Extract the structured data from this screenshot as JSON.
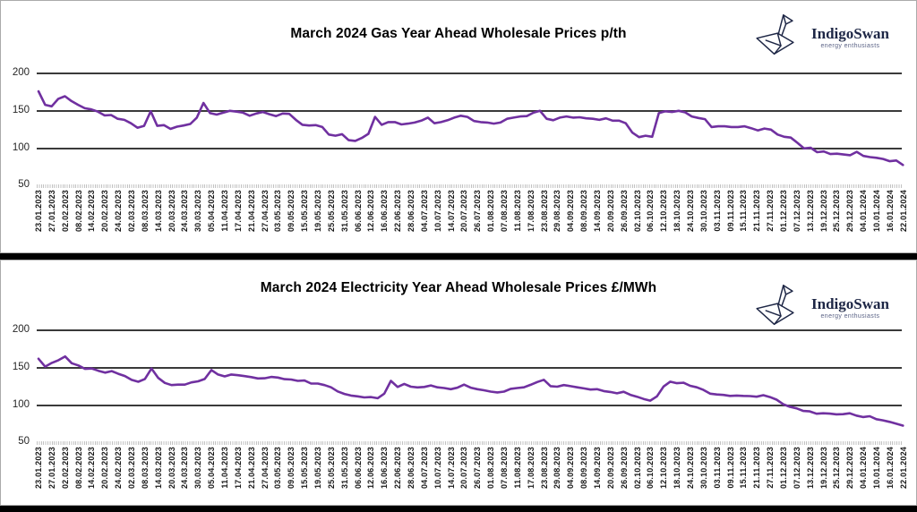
{
  "charts": [
    {
      "title": "March 2024 Gas Year Ahead Wholesale Prices p/th",
      "y_axis_labels": [
        "200",
        "150",
        "100",
        "50"
      ],
      "logo": {
        "icon": "origami-swan-icon",
        "name": "IndigoSwan",
        "tagline": "energy enthusiasts",
        "color": "#1e2746"
      }
    },
    {
      "title": "March 2024 Electricity Year Ahead Wholesale Prices £/MWh",
      "y_axis_labels": [
        "200",
        "150",
        "100",
        "50"
      ],
      "logo": {
        "icon": "origami-swan-icon",
        "name": "IndigoSwan",
        "tagline": "energy enthusiasts",
        "color": "#1e2746"
      }
    }
  ],
  "chart_data": [
    {
      "type": "line",
      "title": "March 2024 Gas Year Ahead Wholesale Prices p/th",
      "unit": "p/th",
      "ylim": [
        50,
        200
      ],
      "y_gridlines": [
        100,
        150,
        200
      ],
      "grid": "horizontal-only",
      "legend": "none",
      "line_color": "#7030A0",
      "points_per_label_interval": 2,
      "x_labels": [
        "23.01.2023",
        "27.01.2023",
        "02.02.2023",
        "08.02.2023",
        "14.02.2023",
        "20.02.2023",
        "24.02.2023",
        "02.03.2023",
        "08.03.2023",
        "14.03.2023",
        "20.03.2023",
        "24.03.2023",
        "30.03.2023",
        "05.04.2023",
        "11.04.2023",
        "17.04.2023",
        "21.04.2023",
        "27.04.2023",
        "03.05.2023",
        "09.05.2023",
        "15.05.2023",
        "19.05.2023",
        "25.05.2023",
        "31.05.2023",
        "06.06.2023",
        "12.06.2023",
        "16.06.2023",
        "22.06.2023",
        "28.06.2023",
        "04.07.2023",
        "10.07.2023",
        "14.07.2023",
        "20.07.2023",
        "26.07.2023",
        "01.08.2023",
        "07.08.2023",
        "11.08.2023",
        "17.08.2023",
        "23.08.2023",
        "29.08.2023",
        "04.09.2023",
        "08.09.2023",
        "14.09.2023",
        "20.09.2023",
        "26.09.2023",
        "02.10.2023",
        "06.10.2023",
        "12.10.2023",
        "18.10.2023",
        "24.10.2023",
        "30.10.2023",
        "03.11.2023",
        "09.11.2023",
        "15.11.2023",
        "21.11.2023",
        "27.11.2023",
        "01.12.2023",
        "07.12.2023",
        "13.12.2023",
        "19.12.2023",
        "25.12.2023",
        "29.12.2023",
        "04.01.2024",
        "10.01.2024",
        "16.01.2024",
        "22.01.2024"
      ],
      "series": [
        {
          "name": "Gas year ahead wholesale price",
          "values": [
            175,
            157,
            155,
            165,
            168.5,
            162,
            157,
            152.5,
            151,
            148,
            143,
            143.5,
            138.5,
            137,
            132.5,
            126.5,
            129,
            148.5,
            129,
            130,
            125,
            128,
            129.5,
            131.5,
            140,
            159.5,
            146,
            144,
            146.5,
            149,
            148,
            146.5,
            142.5,
            145.5,
            147.5,
            144.5,
            142,
            145.5,
            145,
            137,
            130.5,
            129.5,
            130,
            127.5,
            117.5,
            116,
            118,
            110,
            109,
            113,
            118.5,
            141,
            130.5,
            134,
            134,
            131,
            132,
            133.5,
            136,
            140,
            132.5,
            134,
            136.5,
            140,
            142.5,
            141,
            135.5,
            134,
            133.5,
            132,
            133.5,
            138.5,
            140,
            141.5,
            142,
            146.5,
            149,
            138.5,
            136.5,
            140,
            141.5,
            140,
            140.5,
            139,
            138.5,
            137,
            139,
            136,
            136,
            132.5,
            120,
            114,
            116,
            114.5,
            146,
            148.5,
            147.5,
            149,
            147,
            141.5,
            139.5,
            138,
            127.5,
            128.5,
            128.5,
            127.5,
            127.5,
            128.5,
            126,
            123,
            125.5,
            124,
            117.5,
            114.5,
            113.5,
            106.5,
            99,
            100,
            94,
            95,
            91.5,
            92,
            91,
            90,
            94.5,
            89,
            87.5,
            86.5,
            85,
            82,
            83,
            77
          ]
        }
      ]
    },
    {
      "type": "line",
      "title": "March 2024 Electricity Year Ahead Wholesale Prices £/MWh",
      "unit": "£/MWh",
      "ylim": [
        50,
        200
      ],
      "y_gridlines": [
        100,
        150,
        200
      ],
      "grid": "horizontal-only",
      "legend": "none",
      "line_color": "#7030A0",
      "points_per_label_interval": 2,
      "x_labels": [
        "23.01.2023",
        "27.01.2023",
        "02.02.2023",
        "08.02.2023",
        "14.02.2023",
        "20.02.2023",
        "24.02.2023",
        "02.03.2023",
        "08.03.2023",
        "14.03.2023",
        "20.03.2023",
        "24.03.2023",
        "30.03.2023",
        "05.04.2023",
        "11.04.2023",
        "17.04.2023",
        "21.04.2023",
        "27.04.2023",
        "03.05.2023",
        "09.05.2023",
        "15.05.2023",
        "19.05.2023",
        "25.05.2023",
        "31.05.2023",
        "06.06.2023",
        "12.06.2023",
        "16.06.2023",
        "22.06.2023",
        "28.06.2023",
        "04.07.2023",
        "10.07.2023",
        "14.07.2023",
        "20.07.2023",
        "26.07.2023",
        "01.08.2023",
        "07.08.2023",
        "11.08.2023",
        "17.08.2023",
        "23.08.2023",
        "29.08.2023",
        "04.09.2023",
        "08.09.2023",
        "14.09.2023",
        "20.09.2023",
        "26.09.2023",
        "02.10.2023",
        "06.10.2023",
        "12.10.2023",
        "18.10.2023",
        "24.10.2023",
        "30.10.2023",
        "03.11.2023",
        "09.11.2023",
        "15.11.2023",
        "21.11.2023",
        "27.11.2023",
        "01.12.2023",
        "07.12.2023",
        "13.12.2023",
        "19.12.2023",
        "25.12.2023",
        "29.12.2023",
        "04.01.2024",
        "10.01.2024",
        "16.01.2024",
        "22.01.2024"
      ],
      "series": [
        {
          "name": "Electricity year ahead wholesale price",
          "values": [
            161,
            150.5,
            155.5,
            159,
            164,
            155,
            152,
            147.5,
            148,
            145,
            142.5,
            144.5,
            141,
            138,
            132.8,
            130.4,
            134,
            148,
            135.5,
            128.8,
            126,
            126.5,
            126.5,
            129.5,
            131,
            134,
            146,
            140,
            137.5,
            140,
            139,
            137.8,
            136.5,
            134.8,
            135,
            136.8,
            136,
            133.8,
            133.3,
            131.5,
            132,
            128,
            128,
            126,
            123,
            117.5,
            114.2,
            112,
            111,
            109.5,
            110,
            108.5,
            114.5,
            131.5,
            123.5,
            127.5,
            123.8,
            122.8,
            123.5,
            125.5,
            123,
            122,
            120.5,
            122.5,
            126.5,
            122.5,
            120.5,
            119,
            117.3,
            116.2,
            117.3,
            121,
            122,
            123,
            126.3,
            130,
            133,
            124.5,
            123.8,
            126,
            124.5,
            123,
            121.5,
            120,
            120.5,
            118,
            116.8,
            115,
            117,
            113,
            110.5,
            107.5,
            105.2,
            111,
            124,
            130.5,
            128.5,
            129,
            125,
            123,
            119.5,
            114.5,
            113.5,
            112.8,
            111.5,
            112,
            111.5,
            111.3,
            110.5,
            112.5,
            110,
            106.5,
            100.5,
            97,
            95,
            91.5,
            91,
            87.8,
            88.5,
            88,
            87,
            87.3,
            88.5,
            85.3,
            83.5,
            84.5,
            80.6,
            79,
            77,
            74.5,
            72
          ]
        }
      ]
    }
  ]
}
